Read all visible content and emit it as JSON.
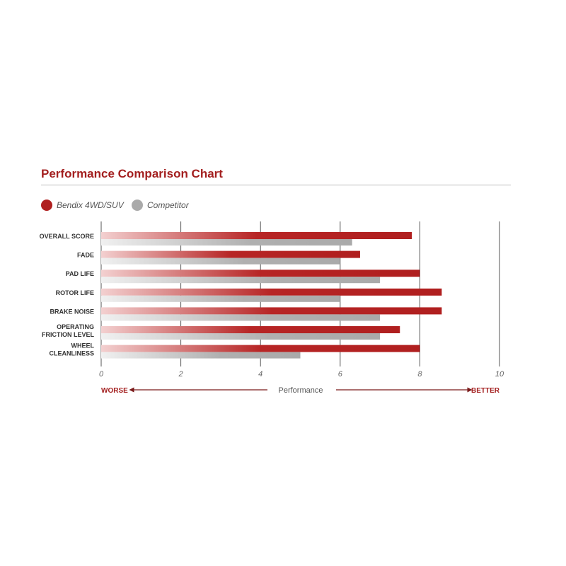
{
  "chart_data": {
    "type": "bar",
    "orientation": "horizontal",
    "title": "Performance Comparison Chart",
    "categories": [
      [
        "OVERALL SCORE"
      ],
      [
        "FADE"
      ],
      [
        "PAD LIFE"
      ],
      [
        "ROTOR LIFE"
      ],
      [
        "BRAKE NOISE"
      ],
      [
        "OPERATING",
        "FRICTION LEVEL"
      ],
      [
        "WHEEL",
        "CLEANLINESS"
      ]
    ],
    "series": [
      {
        "name": "Bendix 4WD/SUV",
        "color": "#b01f1f",
        "values": [
          7.8,
          6.5,
          8,
          8.55,
          8.55,
          7.5,
          8
        ]
      },
      {
        "name": "Competitor",
        "color": "#aaaaaa",
        "values": [
          6.3,
          6,
          7,
          6,
          7,
          7,
          5
        ]
      }
    ],
    "xlim": [
      0,
      10
    ],
    "xticks": [
      "0",
      "2",
      "4",
      "6",
      "8",
      "10"
    ],
    "xlabel": "Performance",
    "worse_label": "WORSE",
    "better_label": "BETTER",
    "grid": true,
    "legend": "top-left"
  }
}
